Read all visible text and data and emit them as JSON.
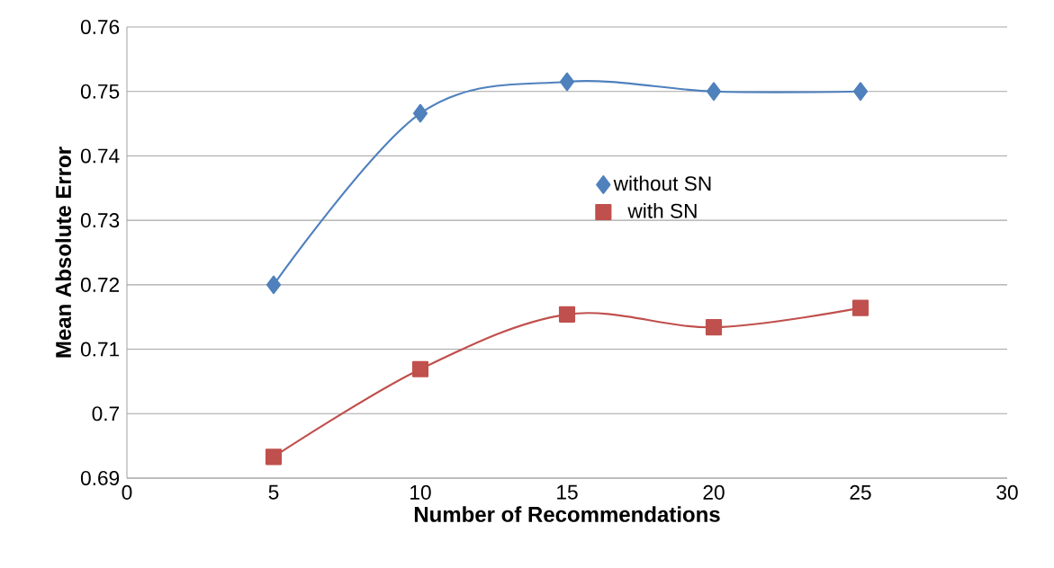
{
  "chart_data": {
    "type": "line",
    "xlabel": "Number of Recommendations",
    "ylabel": "Mean Absolute Error",
    "x": [
      5,
      10,
      15,
      20,
      25
    ],
    "series": [
      {
        "name": "without SN",
        "color": "#4f81bd",
        "marker": "diamond",
        "values": [
          0.72,
          0.7466,
          0.7515,
          0.75,
          0.75
        ]
      },
      {
        "name": "with SN",
        "color": "#c0504d",
        "marker": "square",
        "values": [
          0.6933,
          0.7069,
          0.7154,
          0.7134,
          0.7164
        ]
      }
    ],
    "xlim": [
      0,
      30
    ],
    "xticks": [
      0,
      5,
      10,
      15,
      20,
      25,
      30
    ],
    "ylim": [
      0.69,
      0.76
    ],
    "yticks": [
      0.69,
      0.7,
      0.71,
      0.72,
      0.73,
      0.74,
      0.75,
      0.76
    ],
    "grid": "y",
    "legend": "center",
    "line_style": "solid"
  }
}
